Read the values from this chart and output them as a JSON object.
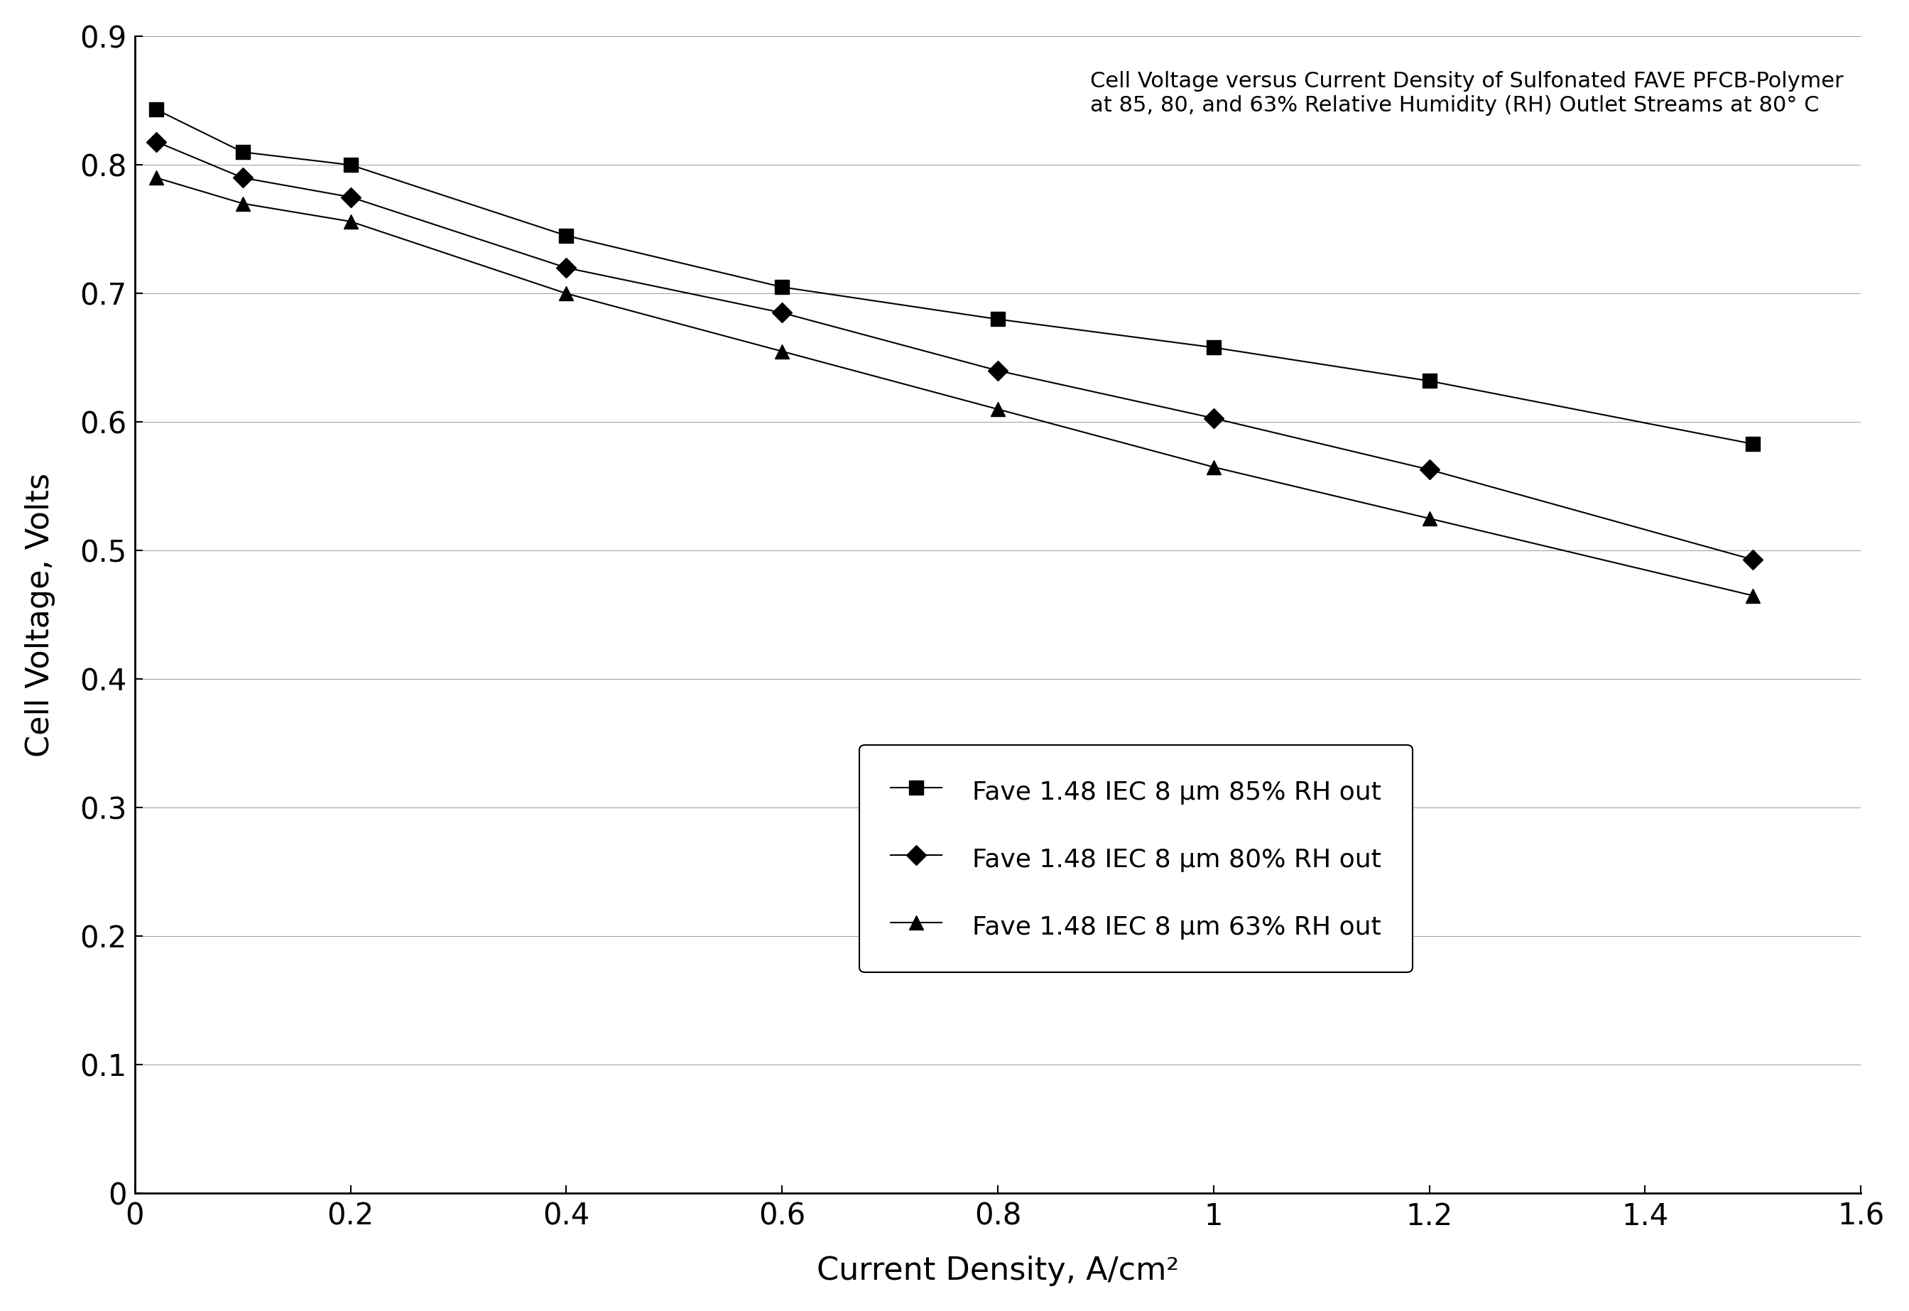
{
  "title_line1": "Cell Voltage versus Current Density of Sulfonated FAVE PFCB-Polymer",
  "title_line2": "at 85, 80, and 63% Relative Humidity (RH) Outlet Streams at 80° C",
  "xlabel": "Current Density, A/cm²",
  "ylabel": "Cell Voltage, Volts",
  "xlim": [
    0,
    1.6
  ],
  "ylim": [
    0,
    0.9
  ],
  "xticks": [
    0,
    0.2,
    0.4,
    0.6,
    0.8,
    1.0,
    1.2,
    1.4,
    1.6
  ],
  "yticks": [
    0,
    0.1,
    0.2,
    0.3,
    0.4,
    0.5,
    0.6,
    0.7,
    0.8,
    0.9
  ],
  "series": [
    {
      "label": "Fave 1.48 IEC 8 μm 85% RH out",
      "x": [
        0.02,
        0.1,
        0.2,
        0.4,
        0.6,
        0.8,
        1.0,
        1.2,
        1.5
      ],
      "y": [
        0.843,
        0.81,
        0.8,
        0.745,
        0.705,
        0.68,
        0.658,
        0.632,
        0.583
      ],
      "marker": "s",
      "color": "#000000",
      "markersize": 14,
      "linewidth": 1.5
    },
    {
      "label": "Fave 1.48 IEC 8 μm 80% RH out",
      "x": [
        0.02,
        0.1,
        0.2,
        0.4,
        0.6,
        0.8,
        1.0,
        1.2,
        1.5
      ],
      "y": [
        0.818,
        0.79,
        0.775,
        0.72,
        0.685,
        0.64,
        0.603,
        0.563,
        0.493
      ],
      "marker": "D",
      "color": "#000000",
      "markersize": 14,
      "linewidth": 1.5
    },
    {
      "label": "Fave 1.48 IEC 8 μm 63% RH out",
      "x": [
        0.02,
        0.1,
        0.2,
        0.4,
        0.6,
        0.8,
        1.0,
        1.2,
        1.5
      ],
      "y": [
        0.79,
        0.77,
        0.756,
        0.7,
        0.655,
        0.61,
        0.565,
        0.525,
        0.465
      ],
      "marker": "^",
      "color": "#000000",
      "markersize": 14,
      "linewidth": 1.5
    }
  ],
  "background_color": "#ffffff",
  "grid_color": "#999999",
  "title_fontsize": 22,
  "tick_fontsize": 30,
  "label_fontsize": 32,
  "legend_fontsize": 26
}
